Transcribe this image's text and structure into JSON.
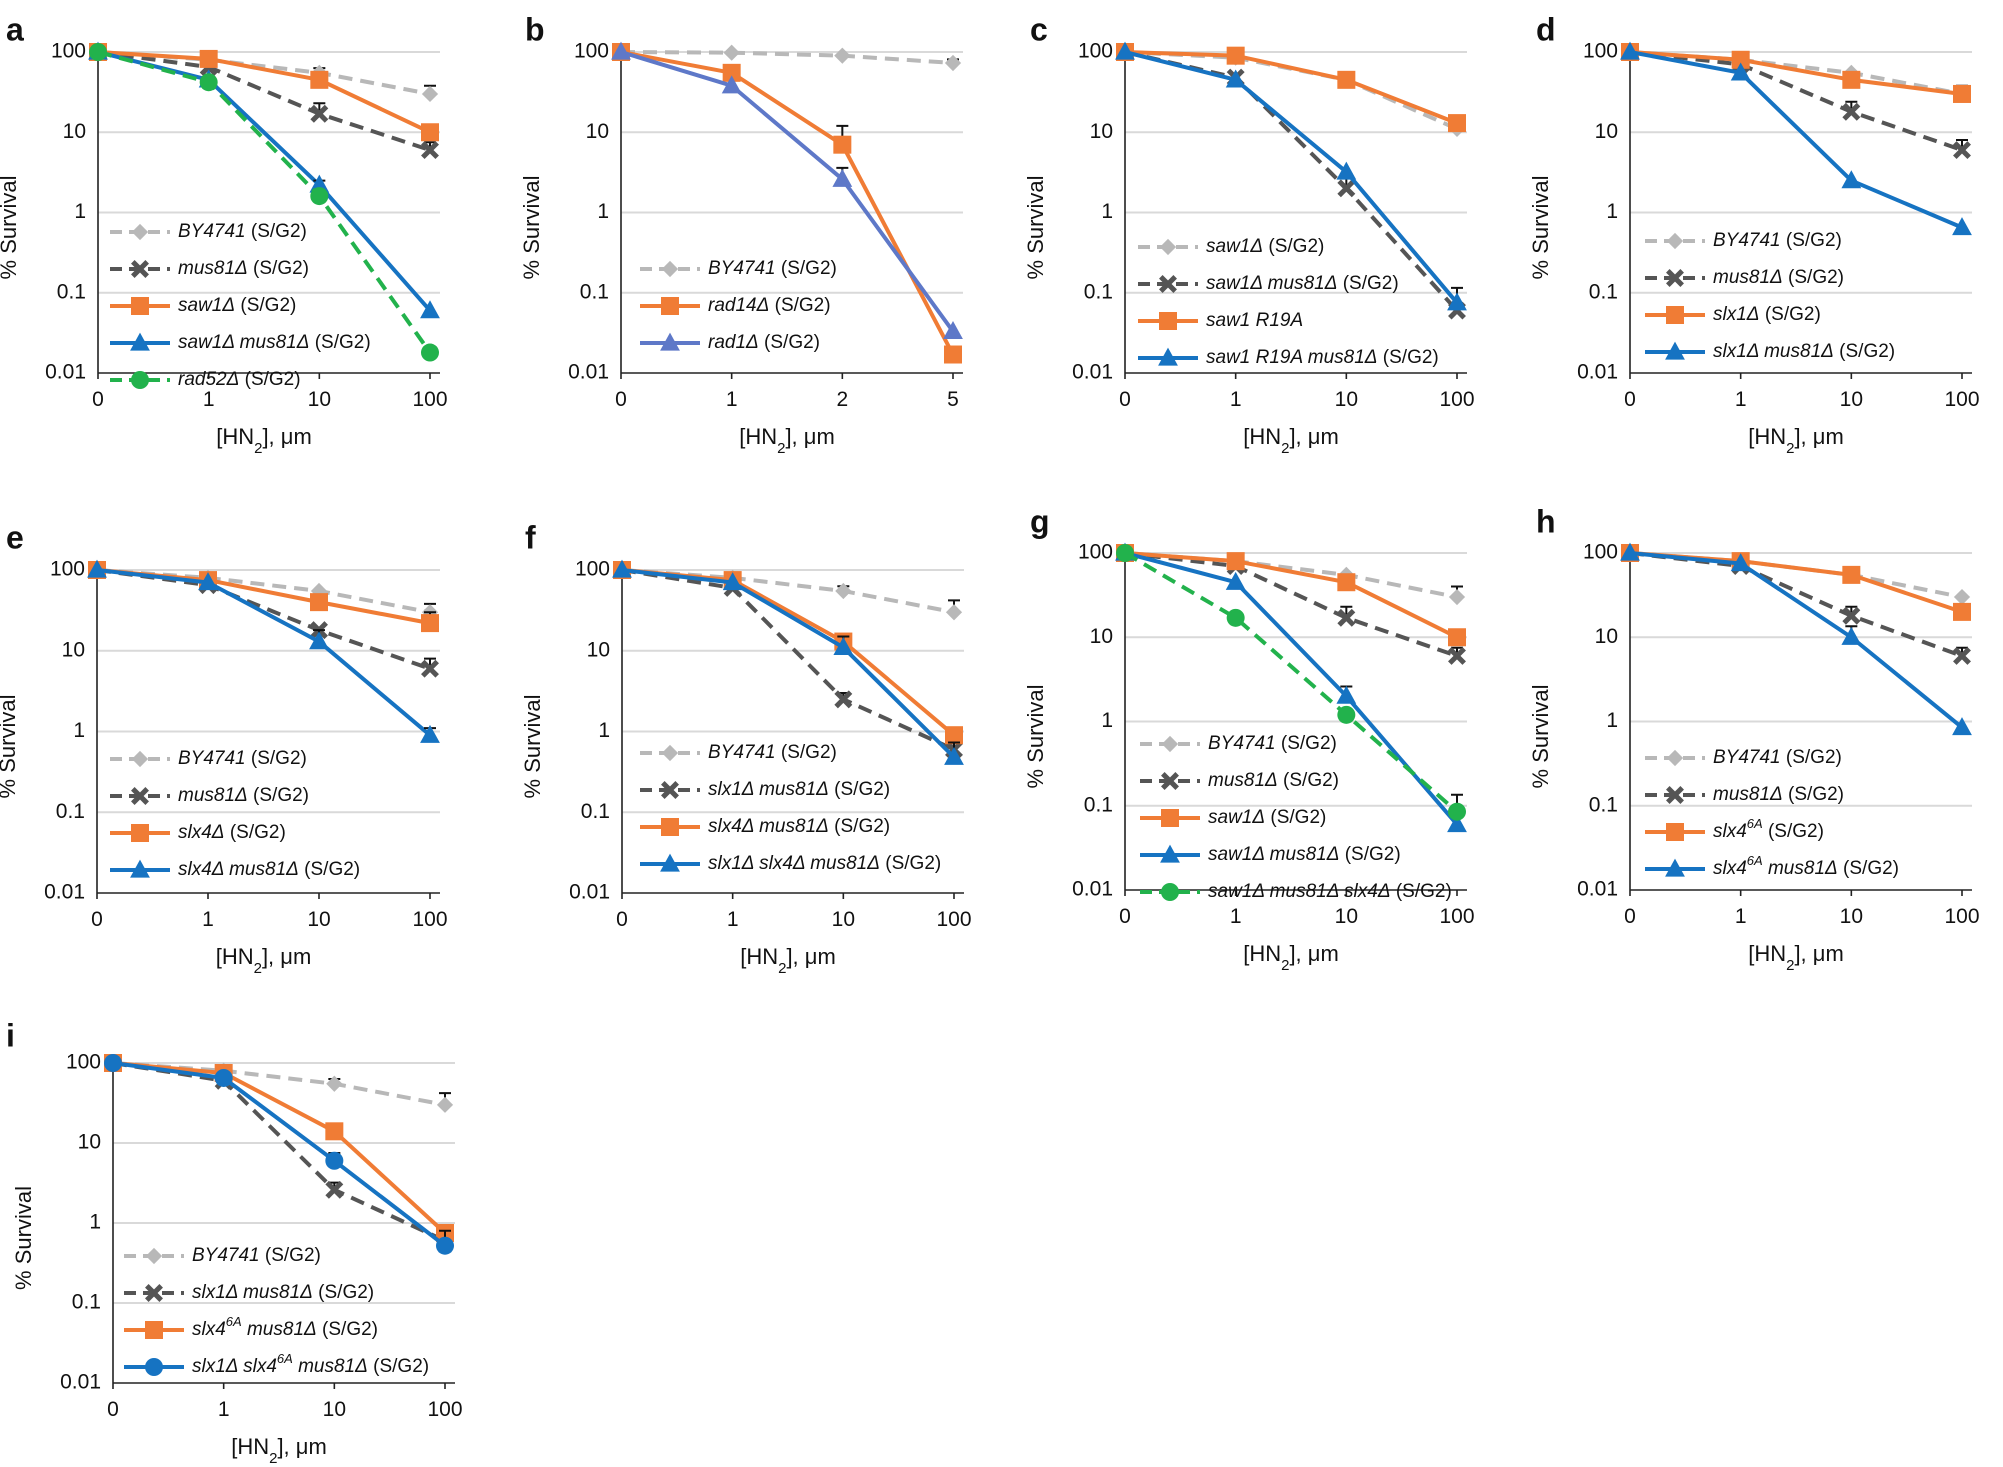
{
  "figure": {
    "colors": {
      "grey": "#b8b8b8",
      "darkgrey": "#555555",
      "orange": "#f07c35",
      "blue": "#1673c2",
      "purple": "#5e78c8",
      "green": "#22b24c",
      "grid": "#d9d9d9",
      "axis": "#222222",
      "errorbar": "#111111"
    }
  },
  "chart_data": [
    {
      "panel": "a",
      "type": "line",
      "yscale": "log",
      "ylim": [
        0.01,
        100
      ],
      "yticks": [
        "100",
        "10",
        "1",
        "0.1",
        "0.01"
      ],
      "categories": [
        "0",
        "1",
        "10",
        "100"
      ],
      "xlabel": "[HN2], μm",
      "ylabel": "% Survival",
      "series": [
        {
          "name": "BY4741",
          "label_italic": "BY4741",
          "label_suffix": " (S/G2)",
          "color": "grey",
          "dash": "dash",
          "marker": "diamond",
          "values": [
            100,
            80,
            55,
            30
          ],
          "err": [
            0,
            0,
            8,
            8
          ]
        },
        {
          "name": "mus81Δ",
          "label_italic": "mus81Δ",
          "label_suffix": " (S/G2)",
          "color": "darkgrey",
          "dash": "dash",
          "marker": "x",
          "values": [
            100,
            65,
            17,
            6
          ],
          "err": [
            0,
            0,
            6,
            1.5
          ]
        },
        {
          "name": "saw1Δ",
          "label_italic": "saw1Δ",
          "label_suffix": " (S/G2)",
          "color": "orange",
          "dash": "solid",
          "marker": "square",
          "values": [
            100,
            82,
            45,
            10
          ],
          "err": [
            0,
            0,
            0,
            0
          ]
        },
        {
          "name": "saw1Δ mus81Δ",
          "label_italic": "saw1Δ mus81Δ",
          "label_suffix": " (S/G2)",
          "color": "blue",
          "dash": "solid",
          "marker": "triangle",
          "values": [
            100,
            45,
            2.2,
            0.06
          ],
          "err": [
            0,
            0,
            0.3,
            0
          ]
        },
        {
          "name": "rad52Δ",
          "label_italic": "rad52Δ",
          "label_suffix": " (S/G2)",
          "color": "green",
          "dash": "dash",
          "marker": "circle",
          "values": [
            100,
            42,
            1.6,
            0.018
          ],
          "err": [
            0,
            0,
            0,
            0
          ]
        }
      ]
    },
    {
      "panel": "b",
      "type": "line",
      "yscale": "log",
      "ylim": [
        0.01,
        100
      ],
      "yticks": [
        "100",
        "10",
        "1",
        "0.1",
        "0.01"
      ],
      "categories": [
        "0",
        "1",
        "2",
        "5"
      ],
      "xlabel": "[HN2], μm",
      "ylabel": "% Survival",
      "series": [
        {
          "name": "BY4741",
          "label_italic": "BY4741",
          "label_suffix": " (S/G2)",
          "color": "grey",
          "dash": "dash",
          "marker": "diamond",
          "values": [
            100,
            98,
            90,
            73
          ],
          "err": [
            0,
            0,
            0,
            8
          ]
        },
        {
          "name": "rad14Δ",
          "label_italic": "rad14Δ",
          "label_suffix": " (S/G2)",
          "color": "orange",
          "dash": "solid",
          "marker": "square",
          "values": [
            100,
            55,
            7,
            0.017
          ],
          "err": [
            0,
            0,
            5,
            0
          ]
        },
        {
          "name": "rad1Δ",
          "label_italic": "rad1Δ",
          "label_suffix": " (S/G2)",
          "color": "purple",
          "dash": "solid",
          "marker": "triangle",
          "values": [
            100,
            38,
            2.6,
            0.033
          ],
          "err": [
            0,
            0,
            1,
            0
          ]
        }
      ]
    },
    {
      "panel": "c",
      "type": "line",
      "yscale": "log",
      "ylim": [
        0.01,
        100
      ],
      "yticks": [
        "100",
        "10",
        "1",
        "0.1",
        "0.01"
      ],
      "categories": [
        "0",
        "1",
        "10",
        "100"
      ],
      "xlabel": "[HN2], μm",
      "ylabel": "% Survival",
      "series": [
        {
          "name": "saw1Δ",
          "label_italic": "saw1Δ",
          "label_suffix": " (S/G2)",
          "color": "grey",
          "dash": "dash",
          "marker": "diamond",
          "values": [
            100,
            85,
            45,
            11
          ],
          "err": [
            0,
            0,
            0,
            0
          ]
        },
        {
          "name": "saw1Δ mus81Δ",
          "label_italic": "saw1Δ mus81Δ",
          "label_suffix": " (S/G2)",
          "color": "darkgrey",
          "dash": "dash",
          "marker": "x",
          "values": [
            100,
            48,
            2,
            0.06
          ],
          "err": [
            0,
            0,
            0.8,
            0
          ]
        },
        {
          "name": "saw1 R19A",
          "label_italic": "saw1 R19A",
          "label_suffix": "",
          "color": "orange",
          "dash": "solid",
          "marker": "square",
          "values": [
            100,
            90,
            45,
            13
          ],
          "err": [
            0,
            0,
            0,
            0
          ]
        },
        {
          "name": "saw1 R19A mus81Δ",
          "label_italic": "saw1 R19A mus81Δ",
          "label_suffix": " (S/G2)",
          "color": "blue",
          "dash": "solid",
          "marker": "triangle",
          "values": [
            100,
            45,
            3.2,
            0.075
          ],
          "err": [
            0,
            0,
            0,
            0.04
          ]
        }
      ]
    },
    {
      "panel": "d",
      "type": "line",
      "yscale": "log",
      "ylim": [
        0.01,
        100
      ],
      "yticks": [
        "100",
        "10",
        "1",
        "0.1",
        "0.01"
      ],
      "categories": [
        "0",
        "1",
        "10",
        "100"
      ],
      "xlabel": "[HN2], μm",
      "ylabel": "% Survival",
      "series": [
        {
          "name": "BY4741",
          "label_italic": "BY4741",
          "label_suffix": " (S/G2)",
          "color": "grey",
          "dash": "dash",
          "marker": "diamond",
          "values": [
            100,
            80,
            55,
            30
          ],
          "err": [
            0,
            0,
            0,
            8
          ]
        },
        {
          "name": "mus81Δ",
          "label_italic": "mus81Δ",
          "label_suffix": " (S/G2)",
          "color": "darkgrey",
          "dash": "dash",
          "marker": "x",
          "values": [
            100,
            70,
            18,
            6
          ],
          "err": [
            0,
            0,
            6,
            2
          ]
        },
        {
          "name": "slx1Δ",
          "label_italic": "slx1Δ",
          "label_suffix": " (S/G2)",
          "color": "orange",
          "dash": "solid",
          "marker": "square",
          "values": [
            100,
            80,
            45,
            30
          ],
          "err": [
            0,
            0,
            0,
            0
          ]
        },
        {
          "name": "slx1Δ mus81Δ",
          "label_italic": "slx1Δ mus81Δ",
          "label_suffix": " (S/G2)",
          "color": "blue",
          "dash": "solid",
          "marker": "triangle",
          "values": [
            100,
            55,
            2.5,
            0.65
          ],
          "err": [
            0,
            0,
            0,
            0
          ]
        }
      ]
    },
    {
      "panel": "e",
      "type": "line",
      "yscale": "log",
      "ylim": [
        0.01,
        100
      ],
      "yticks": [
        "100",
        "10",
        "1",
        "0.1",
        "0.01"
      ],
      "categories": [
        "0",
        "1",
        "10",
        "100"
      ],
      "xlabel": "[HN2], μm",
      "ylabel": "% Survival",
      "series": [
        {
          "name": "BY4741",
          "label_italic": "BY4741",
          "label_suffix": " (S/G2)",
          "color": "grey",
          "dash": "dash",
          "marker": "diamond",
          "values": [
            100,
            80,
            55,
            30
          ],
          "err": [
            0,
            0,
            0,
            8
          ]
        },
        {
          "name": "mus81Δ",
          "label_italic": "mus81Δ",
          "label_suffix": " (S/G2)",
          "color": "darkgrey",
          "dash": "dash",
          "marker": "x",
          "values": [
            100,
            65,
            18,
            6
          ],
          "err": [
            0,
            0,
            0,
            2
          ]
        },
        {
          "name": "slx4Δ",
          "label_italic": "slx4Δ",
          "label_suffix": " (S/G2)",
          "color": "orange",
          "dash": "solid",
          "marker": "square",
          "values": [
            100,
            75,
            40,
            22
          ],
          "err": [
            0,
            0,
            0,
            8
          ]
        },
        {
          "name": "slx4Δ mus81Δ",
          "label_italic": "slx4Δ mus81Δ",
          "label_suffix": " (S/G2)",
          "color": "blue",
          "dash": "solid",
          "marker": "triangle",
          "values": [
            100,
            70,
            13,
            0.9
          ],
          "err": [
            0,
            0,
            5,
            0.2
          ]
        }
      ]
    },
    {
      "panel": "f",
      "type": "line",
      "yscale": "log",
      "ylim": [
        0.01,
        100
      ],
      "yticks": [
        "100",
        "10",
        "1",
        "0.1",
        "0.01"
      ],
      "categories": [
        "0",
        "1",
        "10",
        "100"
      ],
      "xlabel": "[HN2], μm",
      "ylabel": "% Survival",
      "series": [
        {
          "name": "BY4741",
          "label_italic": "BY4741",
          "label_suffix": " (S/G2)",
          "color": "grey",
          "dash": "dash",
          "marker": "diamond",
          "values": [
            100,
            80,
            55,
            30
          ],
          "err": [
            0,
            0,
            8,
            12
          ]
        },
        {
          "name": "slx1Δ mus81Δ",
          "label_italic": "slx1Δ mus81Δ",
          "label_suffix": " (S/G2)",
          "color": "darkgrey",
          "dash": "dash",
          "marker": "x",
          "values": [
            100,
            60,
            2.5,
            0.6
          ],
          "err": [
            0,
            10,
            0.5,
            0
          ]
        },
        {
          "name": "slx4Δ mus81Δ",
          "label_italic": "slx4Δ mus81Δ",
          "label_suffix": " (S/G2)",
          "color": "orange",
          "dash": "solid",
          "marker": "square",
          "values": [
            100,
            75,
            13,
            0.9
          ],
          "err": [
            0,
            0,
            0,
            0
          ]
        },
        {
          "name": "slx1Δ slx4Δ mus81Δ",
          "label_italic": "slx1Δ slx4Δ mus81Δ",
          "label_suffix": " (S/G2)",
          "color": "blue",
          "dash": "solid",
          "marker": "triangle",
          "values": [
            100,
            70,
            11,
            0.48
          ],
          "err": [
            0,
            0,
            4,
            0.25
          ]
        }
      ]
    },
    {
      "panel": "g",
      "type": "line",
      "yscale": "log",
      "ylim": [
        0.01,
        100
      ],
      "yticks": [
        "100",
        "10",
        "1",
        "0.1",
        "0.01"
      ],
      "categories": [
        "0",
        "1",
        "10",
        "100"
      ],
      "xlabel": "[HN2], μm",
      "ylabel": "% Survival",
      "series": [
        {
          "name": "BY4741",
          "label_italic": "BY4741",
          "label_suffix": " (S/G2)",
          "color": "grey",
          "dash": "dash",
          "marker": "diamond",
          "values": [
            100,
            80,
            55,
            30
          ],
          "err": [
            0,
            0,
            0,
            10
          ]
        },
        {
          "name": "mus81Δ",
          "label_italic": "mus81Δ",
          "label_suffix": " (S/G2)",
          "color": "darkgrey",
          "dash": "dash",
          "marker": "x",
          "values": [
            100,
            70,
            17,
            6
          ],
          "err": [
            0,
            0,
            6,
            1.5
          ]
        },
        {
          "name": "saw1Δ",
          "label_italic": "saw1Δ",
          "label_suffix": " (S/G2)",
          "color": "orange",
          "dash": "solid",
          "marker": "square",
          "values": [
            100,
            80,
            45,
            10
          ],
          "err": [
            0,
            0,
            0,
            0
          ]
        },
        {
          "name": "saw1Δ mus81Δ",
          "label_italic": "saw1Δ mus81Δ",
          "label_suffix": " (S/G2)",
          "color": "blue",
          "dash": "solid",
          "marker": "triangle",
          "values": [
            100,
            45,
            2,
            0.06
          ],
          "err": [
            0,
            0,
            0.6,
            0.02
          ]
        },
        {
          "name": "saw1Δ mus81Δ slx4Δ",
          "label_italic": "saw1Δ mus81Δ slx4Δ",
          "label_suffix": " (S/G2)",
          "color": "green",
          "dash": "dash",
          "marker": "circle",
          "values": [
            100,
            17,
            1.2,
            0.085
          ],
          "err": [
            0,
            0,
            0,
            0.05
          ]
        }
      ]
    },
    {
      "panel": "h",
      "type": "line",
      "yscale": "log",
      "ylim": [
        0.01,
        100
      ],
      "yticks": [
        "100",
        "10",
        "1",
        "0.1",
        "0.01"
      ],
      "categories": [
        "0",
        "1",
        "10",
        "100"
      ],
      "xlabel": "[HN2], μm",
      "ylabel": "% Survival",
      "series": [
        {
          "name": "BY4741",
          "label_italic": "BY4741",
          "label_suffix": " (S/G2)",
          "color": "grey",
          "dash": "dash",
          "marker": "diamond",
          "values": [
            100,
            80,
            55,
            30
          ],
          "err": [
            0,
            0,
            0,
            0
          ]
        },
        {
          "name": "mus81Δ",
          "label_italic": "mus81Δ",
          "label_suffix": " (S/G2)",
          "color": "darkgrey",
          "dash": "dash",
          "marker": "x",
          "values": [
            100,
            70,
            18,
            6
          ],
          "err": [
            0,
            10,
            5,
            1.5
          ]
        },
        {
          "name": "slx4^6A",
          "label_italic": "slx4",
          "label_sup": "6A",
          "label_suffix": " (S/G2)",
          "color": "orange",
          "dash": "solid",
          "marker": "square",
          "values": [
            100,
            80,
            55,
            20
          ],
          "err": [
            0,
            0,
            0,
            0
          ]
        },
        {
          "name": "slx4^6A mus81Δ",
          "label_italic": "slx4",
          "label_sup": "6A",
          "label_italic2": " mus81Δ",
          "label_suffix": " (S/G2)",
          "color": "blue",
          "dash": "solid",
          "marker": "triangle",
          "values": [
            100,
            75,
            10,
            0.85
          ],
          "err": [
            0,
            0,
            3.5,
            0
          ]
        }
      ]
    },
    {
      "panel": "i",
      "type": "line",
      "yscale": "log",
      "ylim": [
        0.01,
        100
      ],
      "yticks": [
        "100",
        "10",
        "1",
        "0.1",
        "0.01"
      ],
      "categories": [
        "0",
        "1",
        "10",
        "100"
      ],
      "xlabel": "[HN2], μm",
      "ylabel": "% Survival",
      "series": [
        {
          "name": "BY4741",
          "label_italic": "BY4741",
          "label_suffix": " (S/G2)",
          "color": "grey",
          "dash": "dash",
          "marker": "diamond",
          "values": [
            100,
            80,
            55,
            30
          ],
          "err": [
            0,
            0,
            8,
            12
          ]
        },
        {
          "name": "slx1Δ mus81Δ",
          "label_italic": "slx1Δ mus81Δ",
          "label_suffix": " (S/G2)",
          "color": "darkgrey",
          "dash": "dash",
          "marker": "x",
          "values": [
            100,
            60,
            2.6,
            0.6
          ],
          "err": [
            0,
            10,
            0.6,
            0
          ]
        },
        {
          "name": "slx4^6A mus81Δ",
          "label_italic": "slx4",
          "label_sup": "6A",
          "label_italic2": " mus81Δ",
          "label_suffix": " (S/G2)",
          "color": "orange",
          "dash": "solid",
          "marker": "square",
          "values": [
            100,
            75,
            14,
            0.75
          ],
          "err": [
            0,
            0,
            0,
            0
          ]
        },
        {
          "name": "slx1Δ slx4^6A mus81Δ",
          "label_italic": "slx1Δ slx4",
          "label_sup": "6A",
          "label_italic2": " mus81Δ",
          "label_suffix": " (S/G2)",
          "color": "blue",
          "dash": "solid",
          "marker": "circle",
          "values": [
            100,
            65,
            6,
            0.52
          ],
          "err": [
            0,
            0,
            1.5,
            0.28
          ]
        }
      ]
    }
  ]
}
